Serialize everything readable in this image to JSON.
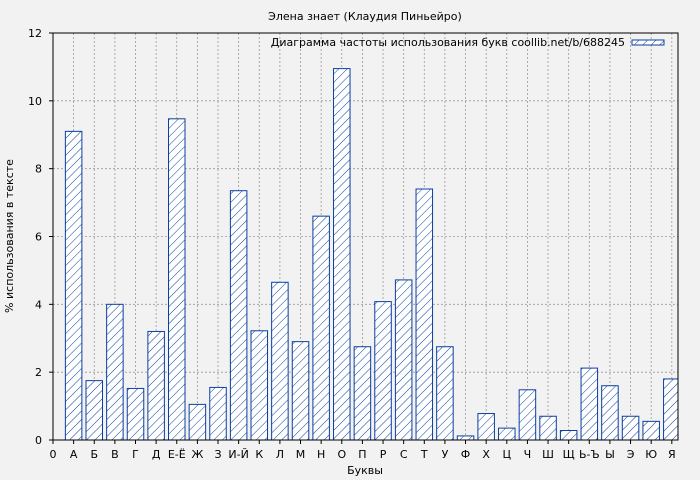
{
  "chart_data": {
    "type": "bar",
    "title": "Элена знает (Клаудия Пиньейро)",
    "xlabel": "Буквы",
    "ylabel": "% использования в тексте",
    "legend": "Диаграмма частоты использования букв coollib.net/b/688245",
    "legend_position": "top-right",
    "grid": true,
    "ylim": [
      0,
      12
    ],
    "yticks": [
      0,
      2,
      4,
      6,
      8,
      10,
      12
    ],
    "categories": [
      "А",
      "Б",
      "В",
      "Г",
      "Д",
      "Е-Ё",
      "Ж",
      "З",
      "И-Й",
      "К",
      "Л",
      "М",
      "Н",
      "О",
      "П",
      "Р",
      "С",
      "Т",
      "У",
      "Ф",
      "Х",
      "Ц",
      "Ч",
      "Ш",
      "Щ",
      "Ь-Ъ",
      "Ы",
      "Э",
      "Ю",
      "Я"
    ],
    "xtick_zero": "0",
    "values": [
      9.1,
      1.75,
      4.0,
      1.52,
      3.2,
      9.47,
      1.05,
      1.55,
      7.35,
      3.22,
      4.65,
      2.9,
      6.6,
      10.95,
      2.75,
      4.08,
      4.72,
      7.4,
      2.75,
      0.12,
      0.78,
      0.35,
      1.48,
      0.7,
      0.28,
      2.12,
      1.6,
      0.7,
      0.55,
      1.8
    ],
    "colors": {
      "bar_stroke": "#0b3fa0",
      "background": "#f2f2f2",
      "grid": "#999999"
    }
  }
}
